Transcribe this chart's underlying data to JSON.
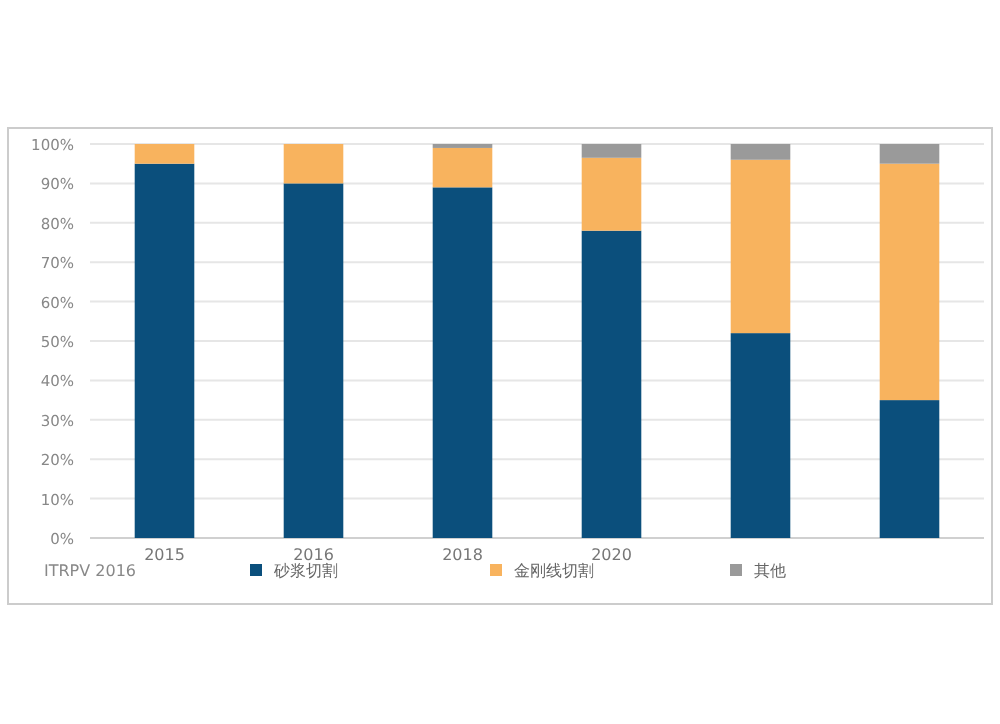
{
  "chart_data": {
    "type": "bar",
    "stacked": true,
    "categories": [
      "2015",
      "2016",
      "2018",
      "2020",
      null,
      null
    ],
    "series": [
      {
        "name": "砂浆切割",
        "color": "#0b4f7c",
        "values": [
          95,
          90,
          89,
          78,
          52,
          35
        ]
      },
      {
        "name": "金刚线切割",
        "color": "#f8b35e",
        "values": [
          5,
          10,
          10,
          18.5,
          44,
          60
        ]
      },
      {
        "name": "其他",
        "color": "#9a9a9a",
        "values": [
          0,
          0,
          1,
          3.5,
          4,
          5
        ]
      }
    ],
    "ylim": [
      0,
      100
    ],
    "yticks": [
      {
        "value": 0,
        "label": "0%"
      },
      {
        "value": 10,
        "label": "10%"
      },
      {
        "value": 20,
        "label": "20%"
      },
      {
        "value": 30,
        "label": "30%"
      },
      {
        "value": 40,
        "label": "40%"
      },
      {
        "value": 50,
        "label": "50%"
      },
      {
        "value": 60,
        "label": "60%"
      },
      {
        "value": 70,
        "label": "70%"
      },
      {
        "value": 80,
        "label": "80%"
      },
      {
        "value": 90,
        "label": "90%"
      },
      {
        "value": 100,
        "label": "100%"
      }
    ],
    "grid": "y",
    "legend": "bottom",
    "annotations": [
      "ITRPV 2016"
    ]
  }
}
